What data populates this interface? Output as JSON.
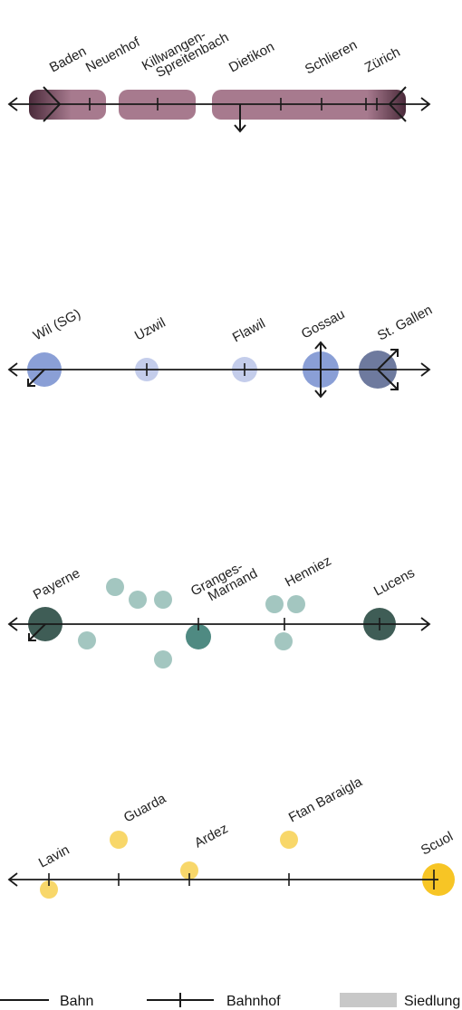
{
  "colors": {
    "line": "#1a1a1a",
    "settlement_gradient_dark": "#4a2a3a",
    "settlement": "#a77a8e",
    "wil": "#8a9fd6",
    "uzwil": "#c4cdeb",
    "flawil": "#c4cdeb",
    "gossau": "#8a9fd6",
    "stgallen": "#6e7a9e",
    "broye_dark": "#3f5d56",
    "broye_mid": "#4f8a82",
    "broye_light": "#a3c6c0",
    "engadin": "#f7c525",
    "engadin_light": "#f8d76a",
    "legend_gray": "#c8c8c8"
  },
  "diagrams": {
    "limmattal": {
      "stations": [
        {
          "name": "Baden"
        },
        {
          "name": "Neuenhof"
        },
        {
          "name": "Killwangen-\nSpreitenbach"
        },
        {
          "name": "Dietikon"
        },
        {
          "name": "Schlieren"
        },
        {
          "name": "Zürich"
        }
      ]
    },
    "fuerstenland": {
      "stations": [
        {
          "name": "Wil (SG)"
        },
        {
          "name": "Uzwil"
        },
        {
          "name": "Flawil"
        },
        {
          "name": "Gossau"
        },
        {
          "name": "St. Gallen"
        }
      ]
    },
    "broye": {
      "stations": [
        {
          "name": "Payerne"
        },
        {
          "name": "Granges-\nMarnand"
        },
        {
          "name": "Henniez"
        },
        {
          "name": "Lucens"
        }
      ]
    },
    "engadin": {
      "stations": [
        {
          "name": "Lavin"
        },
        {
          "name": "Guarda"
        },
        {
          "name": "Ardez"
        },
        {
          "name": "Ftan Baraigla"
        },
        {
          "name": "Scuol"
        }
      ]
    }
  },
  "legend": {
    "rail": "Bahn",
    "station": "Bahnhof",
    "settlement": "Siedlung"
  }
}
